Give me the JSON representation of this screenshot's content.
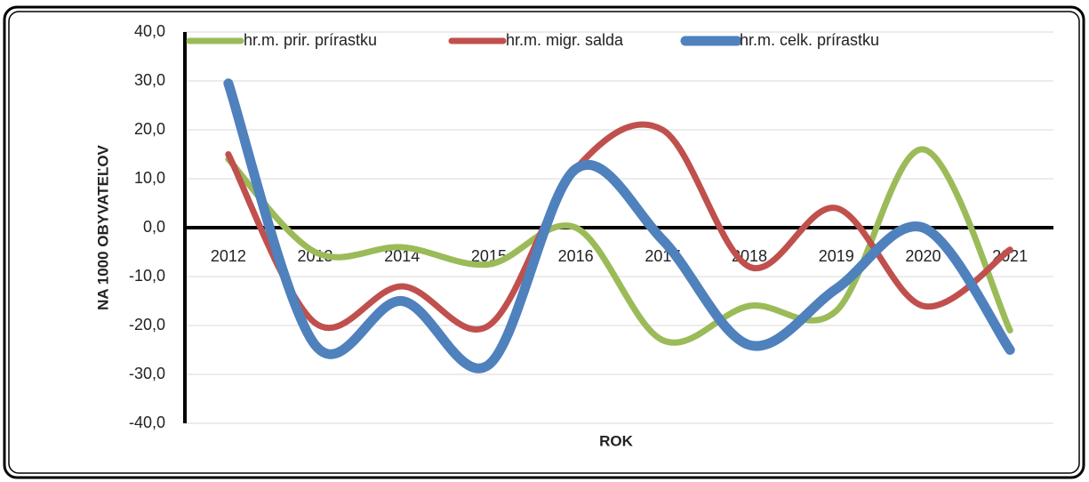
{
  "chart_data": {
    "type": "line",
    "x_label": "ROK",
    "y_label": "NA 1000 OBYVATEĽOV",
    "categories": [
      "2012",
      "2013",
      "2014",
      "2015",
      "2016",
      "2017",
      "2018",
      "2019",
      "2020",
      "2021"
    ],
    "series": [
      {
        "name": "hr.m. prir. prírastku",
        "color": "#9bbb59",
        "values": [
          14,
          -5,
          -4,
          -7.5,
          0,
          -23,
          -16,
          -17,
          16,
          -21
        ]
      },
      {
        "name": "hr.m. migr. salda",
        "color": "#c0504d",
        "values": [
          15,
          -19.5,
          -12,
          -20,
          12,
          20,
          -8,
          4,
          -16,
          -4.5
        ]
      },
      {
        "name": "hr.m. celk. prírastku",
        "color": "#4f81bd",
        "values": [
          29.5,
          -24,
          -15,
          -28,
          12,
          -2.5,
          -24,
          -12.5,
          0,
          -25
        ]
      }
    ],
    "ylim": [
      -40,
      40
    ],
    "yticks": [
      {
        "value": -40,
        "label": "-40,0"
      },
      {
        "value": -30,
        "label": "-30,0"
      },
      {
        "value": -20,
        "label": "-20,0"
      },
      {
        "value": -10,
        "label": "-10,0"
      },
      {
        "value": 0,
        "label": "0,0"
      },
      {
        "value": 10,
        "label": "10,0"
      },
      {
        "value": 20,
        "label": "20,0"
      },
      {
        "value": 30,
        "label": "30,0"
      },
      {
        "value": 40,
        "label": "40,0"
      }
    ],
    "grid": true,
    "smooth": true,
    "legend": "top"
  }
}
